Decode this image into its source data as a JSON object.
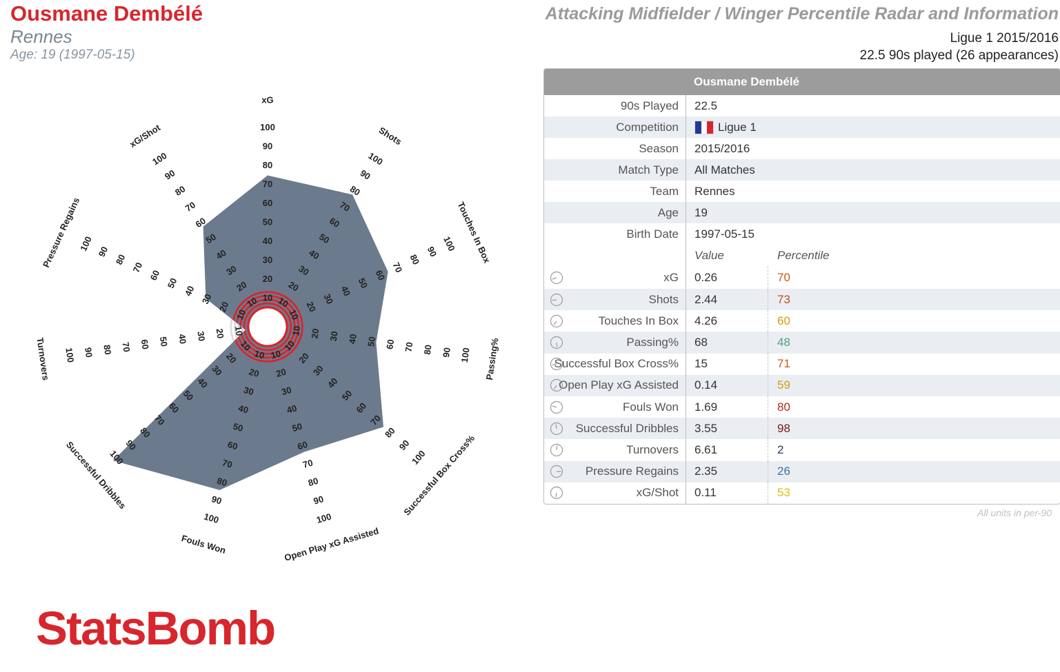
{
  "header": {
    "player_name": "Ousmane Dembélé",
    "team": "Rennes",
    "age_line": "Age: 19 (1997-05-15)",
    "report_title": "Attacking Midfielder / Winger Percentile Radar and Information",
    "league_season": "Ligue 1 2015/2016",
    "played_line": "22.5 90s played (26 appearances)"
  },
  "colors": {
    "accent_red": "#d7262d",
    "slate": "#6b7b8d",
    "ring_grey": "#dcdcdc"
  },
  "chart_data": {
    "type": "radar",
    "range": [
      0,
      100
    ],
    "ring_labels": [
      "10",
      "20",
      "30",
      "40",
      "50",
      "60",
      "70",
      "80",
      "90",
      "100"
    ],
    "axes": [
      "xG",
      "Shots",
      "Touches In Box",
      "Passing%",
      "Successful Box Cross%",
      "Open Play xG Assisted",
      "Fouls Won",
      "Successful Dribbles",
      "Turnovers",
      "Pressure Regains",
      "xG/Shot"
    ],
    "values": [
      70,
      73,
      60,
      48,
      71,
      59,
      80,
      98,
      2,
      26,
      53
    ]
  },
  "table": {
    "title": "Ousmane Dembélé",
    "info_rows": [
      {
        "label": "90s Played",
        "value": "22.5"
      },
      {
        "label": "Competition",
        "value": "Ligue 1",
        "flag": "france-flag"
      },
      {
        "label": "Season",
        "value": "2015/2016"
      },
      {
        "label": "Match Type",
        "value": "All Matches"
      },
      {
        "label": "Team",
        "value": "Rennes"
      },
      {
        "label": "Age",
        "value": "19"
      },
      {
        "label": "Birth Date",
        "value": "1997-05-15"
      }
    ],
    "stat_header": {
      "value": "Value",
      "percentile": "Percentile"
    },
    "stats": [
      {
        "label": "xG",
        "value": "0.26",
        "percentile": "70",
        "color": "#c75a10"
      },
      {
        "label": "Shots",
        "value": "2.44",
        "percentile": "73",
        "color": "#c0501a"
      },
      {
        "label": "Touches In Box",
        "value": "4.26",
        "percentile": "60",
        "color": "#d69a0a"
      },
      {
        "label": "Passing%",
        "value": "68",
        "percentile": "48",
        "color": "#4aa57a"
      },
      {
        "label": "Successful Box Cross%",
        "value": "15",
        "percentile": "71",
        "color": "#c75a10"
      },
      {
        "label": "Open Play xG Assisted",
        "value": "0.14",
        "percentile": "59",
        "color": "#d69a0a"
      },
      {
        "label": "Fouls Won",
        "value": "1.69",
        "percentile": "80",
        "color": "#b02a12"
      },
      {
        "label": "Successful Dribbles",
        "value": "3.55",
        "percentile": "98",
        "color": "#7a1616"
      },
      {
        "label": "Turnovers",
        "value": "6.61",
        "percentile": "2",
        "color": "#2a3b5a"
      },
      {
        "label": "Pressure Regains",
        "value": "2.35",
        "percentile": "26",
        "color": "#3575a8"
      },
      {
        "label": "xG/Shot",
        "value": "0.11",
        "percentile": "53",
        "color": "#e0c010"
      }
    ],
    "footnote": "All units in per-90"
  },
  "logo": "StatsBomb"
}
